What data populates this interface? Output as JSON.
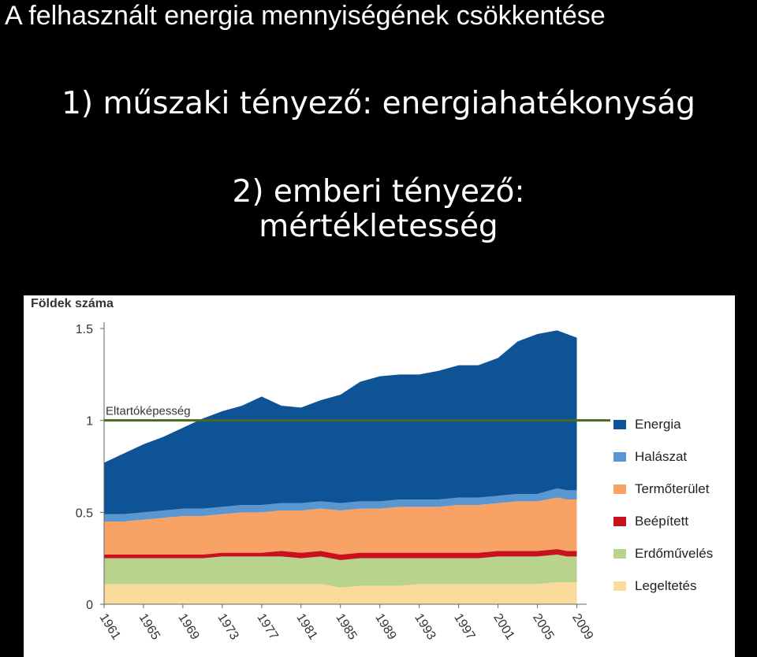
{
  "slide": {
    "title": "A felhasznált energia mennyiségének csökkentése",
    "point1": "1) műszaki tényező: energiahatékonyság",
    "point2_line1": "2) emberi  tényező:",
    "point2_line2": "mértékletesség"
  },
  "chart_data": {
    "type": "area",
    "stacked": true,
    "ylabel": "Földek száma",
    "ylim": [
      0,
      1.5
    ],
    "yticks": [
      0,
      0.5,
      1,
      1.5
    ],
    "xlim": [
      1961,
      2010
    ],
    "xticks": [
      "1961",
      "1965",
      "1969",
      "1973",
      "1977",
      "1981",
      "1985",
      "1989",
      "1993",
      "1997",
      "2001",
      "2005",
      "2009"
    ],
    "reference_line": {
      "label": "Eltartóképesség",
      "value": 1.0,
      "color": "#4a6b1e"
    },
    "legend_position": "right",
    "x": [
      1961,
      1963,
      1965,
      1967,
      1969,
      1971,
      1973,
      1975,
      1977,
      1979,
      1981,
      1983,
      1985,
      1987,
      1989,
      1991,
      1993,
      1995,
      1997,
      1999,
      2001,
      2003,
      2005,
      2007,
      2008,
      2009
    ],
    "series": [
      {
        "name": "Legeltetés",
        "color": "#fbdb9c",
        "values": [
          0.11,
          0.11,
          0.11,
          0.11,
          0.11,
          0.11,
          0.11,
          0.11,
          0.11,
          0.11,
          0.11,
          0.11,
          0.09,
          0.1,
          0.1,
          0.1,
          0.11,
          0.11,
          0.11,
          0.11,
          0.11,
          0.11,
          0.11,
          0.12,
          0.12,
          0.12
        ]
      },
      {
        "name": "Erdőművelés",
        "color": "#b7d38c",
        "values": [
          0.14,
          0.14,
          0.14,
          0.14,
          0.14,
          0.14,
          0.15,
          0.15,
          0.15,
          0.15,
          0.14,
          0.15,
          0.15,
          0.15,
          0.15,
          0.15,
          0.14,
          0.14,
          0.14,
          0.14,
          0.15,
          0.15,
          0.15,
          0.15,
          0.14,
          0.14
        ]
      },
      {
        "name": "Beépített",
        "color": "#c8101e",
        "values": [
          0.02,
          0.02,
          0.02,
          0.02,
          0.02,
          0.02,
          0.02,
          0.02,
          0.02,
          0.03,
          0.03,
          0.03,
          0.03,
          0.03,
          0.03,
          0.03,
          0.03,
          0.03,
          0.03,
          0.03,
          0.03,
          0.03,
          0.03,
          0.03,
          0.03,
          0.03
        ]
      },
      {
        "name": "Termőterület",
        "color": "#f9a266",
        "values": [
          0.18,
          0.18,
          0.19,
          0.2,
          0.21,
          0.21,
          0.21,
          0.22,
          0.22,
          0.22,
          0.23,
          0.23,
          0.24,
          0.24,
          0.24,
          0.25,
          0.25,
          0.25,
          0.26,
          0.26,
          0.26,
          0.27,
          0.27,
          0.28,
          0.28,
          0.28
        ]
      },
      {
        "name": "Halászat",
        "color": "#5a96cf",
        "values": [
          0.04,
          0.04,
          0.04,
          0.04,
          0.04,
          0.04,
          0.04,
          0.04,
          0.04,
          0.04,
          0.04,
          0.04,
          0.04,
          0.04,
          0.04,
          0.04,
          0.04,
          0.04,
          0.04,
          0.04,
          0.04,
          0.04,
          0.04,
          0.05,
          0.05,
          0.05
        ]
      },
      {
        "name": "Energia",
        "color": "#0e5396",
        "values": [
          0.28,
          0.33,
          0.37,
          0.4,
          0.44,
          0.49,
          0.52,
          0.54,
          0.59,
          0.53,
          0.52,
          0.55,
          0.59,
          0.65,
          0.68,
          0.68,
          0.68,
          0.7,
          0.72,
          0.72,
          0.75,
          0.83,
          0.87,
          0.86,
          0.85,
          0.83
        ]
      }
    ]
  }
}
